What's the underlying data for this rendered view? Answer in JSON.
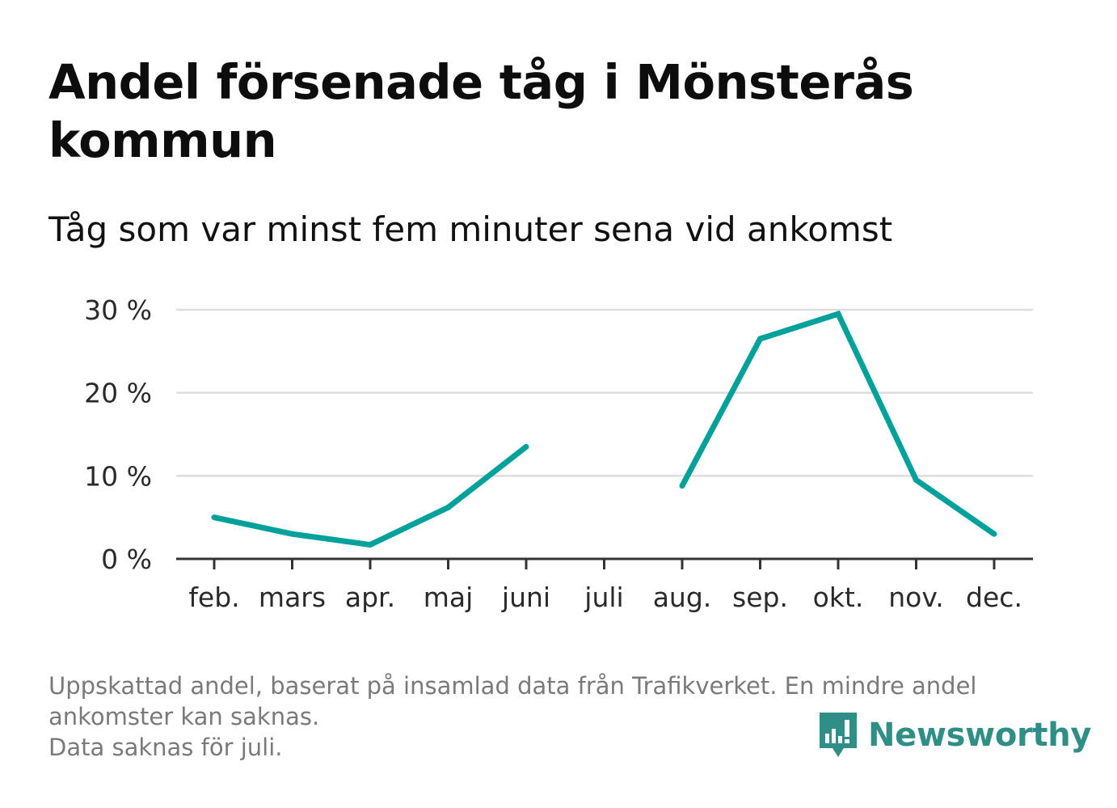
{
  "chart_data": {
    "type": "line",
    "title": "Andel försenade tåg i Mönsterås kommun",
    "subtitle": "Tåg som var minst fem minuter sena vid ankomst",
    "xlabel": "",
    "ylabel": "",
    "categories": [
      "feb.",
      "mars",
      "apr.",
      "maj",
      "juni",
      "juli",
      "aug.",
      "sep.",
      "okt.",
      "nov.",
      "dec."
    ],
    "series": [
      {
        "values": [
          5.0,
          3.0,
          1.7,
          6.2,
          13.5,
          null,
          8.8,
          26.5,
          29.5,
          9.5,
          3.0
        ],
        "color": "#00a19a"
      }
    ],
    "ylim": [
      0,
      30
    ],
    "yticks": [
      0,
      10,
      20,
      30
    ],
    "ytick_labels": [
      "0 %",
      "10 %",
      "20 %",
      "30 %"
    ],
    "grid": true,
    "gridline_color": "#dddddd",
    "axis_color": "#333333"
  },
  "footnote": {
    "lines": [
      "Uppskattad andel, baserat på insamlad data från Trafikverket. En mindre andel",
      "ankomster kan saknas.",
      "Data saknas för juli."
    ]
  },
  "logo": {
    "text": "Newsworthy",
    "icon": "bar-chart-speech-bubble-icon",
    "color": "#2f8f86"
  }
}
